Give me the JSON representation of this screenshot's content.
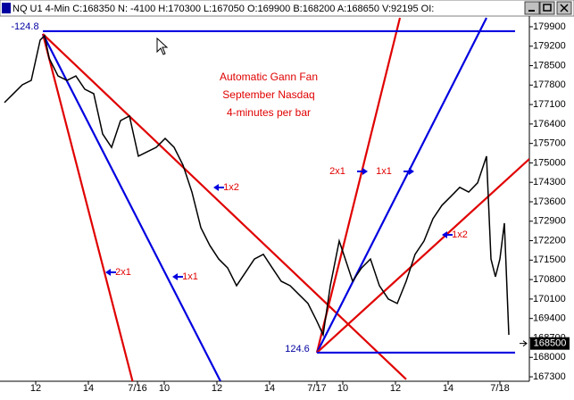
{
  "window_title": "NQ U1 4-Min C:168350 N: -4100 H:170300 L:167050 O:169900 B:168200 A:168650 V:92195 OI:",
  "chart_data": {
    "type": "line",
    "title_lines": [
      "Automatic Gann Fan",
      "September Nasdaq",
      "4-minutes per bar"
    ],
    "x": [
      2.5,
      7.5,
      12.5,
      17.5,
      22.5,
      25,
      27.5,
      32.5,
      37.5,
      42.5,
      47.5,
      52.5,
      57.5,
      62.5,
      67.5,
      72.5,
      77.5,
      82.5,
      87.5,
      92.5,
      97.5,
      102.5,
      107.5,
      112.5,
      117.5,
      122.5,
      127.5,
      132.5,
      137.5,
      142.5,
      147.5,
      152.5,
      157.5,
      162.5,
      167.5,
      172.5,
      177.5,
      181,
      185,
      190,
      192.5,
      197.5,
      202.5,
      207.5,
      212.5,
      217.5,
      222.5,
      227.5,
      232.5,
      237.5,
      242.5,
      247.5,
      252.5,
      257.5,
      262.5,
      267.5,
      272.5,
      275,
      277.5,
      280,
      282.5,
      285
    ],
    "series": [
      {
        "color": "#000000",
        "values": [
          177170,
          177490,
          177810,
          177970,
          179420,
          179580,
          178770,
          178130,
          177970,
          178130,
          177650,
          177490,
          176040,
          175560,
          176520,
          176690,
          175240,
          175400,
          175560,
          175880,
          175560,
          174920,
          173950,
          172670,
          172030,
          171540,
          171220,
          170580,
          171060,
          171540,
          171710,
          171220,
          170740,
          170580,
          170260,
          169940,
          169300,
          168810,
          170580,
          172190,
          171710,
          170740,
          171220,
          171540,
          170580,
          170100,
          169940,
          170740,
          171710,
          172190,
          172990,
          173470,
          173790,
          174120,
          173950,
          174280,
          175240,
          171540,
          170900,
          171540,
          172830,
          168810
        ]
      }
    ],
    "xlim": [
      0,
      296.5
    ],
    "xticks": [
      {
        "value": 20,
        "label": "12"
      },
      {
        "value": 49.5,
        "label": "14"
      },
      {
        "value": 77,
        "label": "7/16"
      },
      {
        "value": 92,
        "label": "10"
      },
      {
        "value": 121.5,
        "label": "12"
      },
      {
        "value": 151,
        "label": "14"
      },
      {
        "value": 177.5,
        "label": "7/17"
      },
      {
        "value": 192,
        "label": "10"
      },
      {
        "value": 221.5,
        "label": "12"
      },
      {
        "value": 251,
        "label": "14"
      },
      {
        "value": 280,
        "label": "7/18"
      }
    ],
    "ylim": [
      167140,
      180220
    ],
    "yticks": [
      179900,
      179200,
      178500,
      177800,
      177100,
      176400,
      175700,
      175000,
      174300,
      173600,
      172900,
      172200,
      171500,
      170800,
      170100,
      169400,
      168700,
      168000,
      167300
    ],
    "grid": false,
    "fan_lines": [
      {
        "color": "#e00000",
        "x": [
          24,
          74.25
        ],
        "y": [
          179640,
          167140
        ]
      },
      {
        "color": "#0000e0",
        "x": [
          24,
          123.5
        ],
        "y": [
          179640,
          167140
        ]
      },
      {
        "color": "#e00000",
        "x": [
          24,
          227.5
        ],
        "y": [
          179640,
          167210
        ]
      },
      {
        "color": "#e00000",
        "x": [
          177.5,
          224
        ],
        "y": [
          168170,
          180220
        ]
      },
      {
        "color": "#0000e0",
        "x": [
          177.5,
          272.5
        ],
        "y": [
          168170,
          180220
        ]
      },
      {
        "color": "#e00000",
        "x": [
          177.5,
          296.5
        ],
        "y": [
          168170,
          175140
        ]
      },
      {
        "color": "#0000e0",
        "x": [
          24,
          288.5
        ],
        "y": [
          179740,
          179740
        ]
      },
      {
        "color": "#0000e0",
        "x": [
          177.5,
          288.5
        ],
        "y": [
          168170,
          168170
        ]
      }
    ],
    "fan_labels": [
      {
        "text": "2x1",
        "color": "#e00000",
        "arrow": "left"
      },
      {
        "text": "1x1",
        "color": "#e00000",
        "arrow": "left"
      },
      {
        "text": "1x2",
        "color": "#e00000",
        "arrow": "left"
      },
      {
        "text": "2x1",
        "color": "#e00000",
        "arrow": "right"
      },
      {
        "text": "1x1",
        "color": "#e00000",
        "arrow": "right"
      },
      {
        "text": "1x2",
        "color": "#e00000",
        "arrow": "left"
      }
    ],
    "point_labels": [
      "-124.8",
      "124.6"
    ],
    "last_price": 168500
  }
}
